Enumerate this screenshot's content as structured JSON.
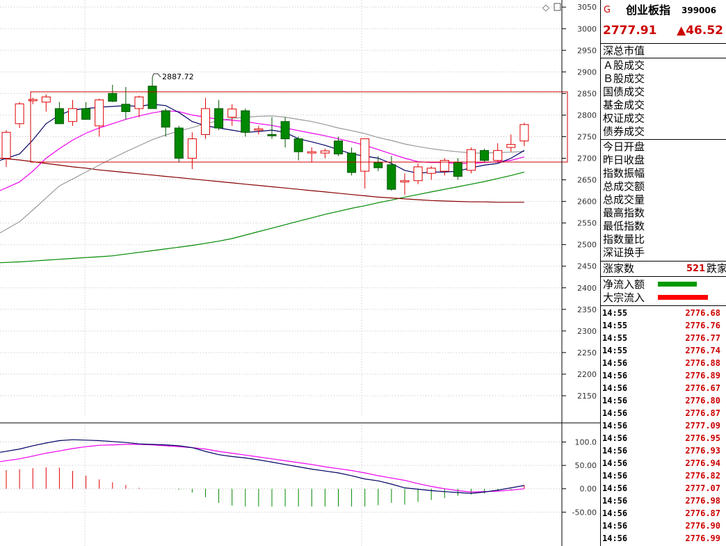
{
  "header": {
    "marker": "G",
    "name": "创业板指",
    "code": "399006",
    "price": "2777.91",
    "change": "▲46.52"
  },
  "chart_data": [
    {
      "type": "candlestick",
      "title": "",
      "ylim": [
        2100,
        3060
      ],
      "y_ticks": [
        3050,
        3000,
        2950,
        2900,
        2850,
        2800,
        2750,
        2700,
        2650,
        2600,
        2550,
        2500,
        2450,
        2400,
        2350,
        2300,
        2250,
        2200,
        2150
      ],
      "high_annotation": "2887.72",
      "candles": [
        {
          "o": 2700,
          "h": 2765,
          "l": 2680,
          "c": 2760
        },
        {
          "o": 2780,
          "h": 2830,
          "l": 2770,
          "c": 2826
        },
        {
          "o": 2833,
          "h": 2840,
          "l": 2825,
          "c": 2836
        },
        {
          "o": 2830,
          "h": 2848,
          "l": 2808,
          "c": 2842
        },
        {
          "o": 2815,
          "h": 2830,
          "l": 2780,
          "c": 2780
        },
        {
          "o": 2785,
          "h": 2835,
          "l": 2775,
          "c": 2815
        },
        {
          "o": 2815,
          "h": 2830,
          "l": 2790,
          "c": 2790
        },
        {
          "o": 2775,
          "h": 2838,
          "l": 2750,
          "c": 2835
        },
        {
          "o": 2850,
          "h": 2870,
          "l": 2830,
          "c": 2832
        },
        {
          "o": 2825,
          "h": 2865,
          "l": 2790,
          "c": 2808
        },
        {
          "o": 2815,
          "h": 2845,
          "l": 2795,
          "c": 2842
        },
        {
          "o": 2867,
          "h": 2887.72,
          "l": 2815,
          "c": 2815
        },
        {
          "o": 2810,
          "h": 2815,
          "l": 2750,
          "c": 2772
        },
        {
          "o": 2770,
          "h": 2775,
          "l": 2690,
          "c": 2700
        },
        {
          "o": 2700,
          "h": 2760,
          "l": 2675,
          "c": 2745
        },
        {
          "o": 2755,
          "h": 2840,
          "l": 2745,
          "c": 2815
        },
        {
          "o": 2815,
          "h": 2835,
          "l": 2765,
          "c": 2770
        },
        {
          "o": 2795,
          "h": 2825,
          "l": 2775,
          "c": 2814
        },
        {
          "o": 2810,
          "h": 2815,
          "l": 2750,
          "c": 2760
        },
        {
          "o": 2765,
          "h": 2775,
          "l": 2755,
          "c": 2768
        },
        {
          "o": 2755,
          "h": 2795,
          "l": 2745,
          "c": 2752
        },
        {
          "o": 2785,
          "h": 2795,
          "l": 2725,
          "c": 2745
        },
        {
          "o": 2745,
          "h": 2750,
          "l": 2695,
          "c": 2715
        },
        {
          "o": 2712,
          "h": 2725,
          "l": 2690,
          "c": 2715
        },
        {
          "o": 2712,
          "h": 2722,
          "l": 2700,
          "c": 2717
        },
        {
          "o": 2740,
          "h": 2750,
          "l": 2705,
          "c": 2710
        },
        {
          "o": 2712,
          "h": 2725,
          "l": 2660,
          "c": 2667
        },
        {
          "o": 2670,
          "h": 2740,
          "l": 2630,
          "c": 2745
        },
        {
          "o": 2690,
          "h": 2705,
          "l": 2670,
          "c": 2678
        },
        {
          "o": 2685,
          "h": 2705,
          "l": 2625,
          "c": 2628
        },
        {
          "o": 2645,
          "h": 2665,
          "l": 2615,
          "c": 2648
        },
        {
          "o": 2648,
          "h": 2688,
          "l": 2640,
          "c": 2680
        },
        {
          "o": 2665,
          "h": 2682,
          "l": 2650,
          "c": 2677
        },
        {
          "o": 2670,
          "h": 2700,
          "l": 2660,
          "c": 2695
        },
        {
          "o": 2690,
          "h": 2700,
          "l": 2650,
          "c": 2658
        },
        {
          "o": 2672,
          "h": 2725,
          "l": 2665,
          "c": 2720
        },
        {
          "o": 2718,
          "h": 2722,
          "l": 2690,
          "c": 2695
        },
        {
          "o": 2695,
          "h": 2735,
          "l": 2690,
          "c": 2718
        },
        {
          "o": 2725,
          "h": 2755,
          "l": 2715,
          "c": 2732
        },
        {
          "o": 2740,
          "h": 2782,
          "l": 2728,
          "c": 2778
        }
      ],
      "ma_short": [
        2695,
        2710,
        2742,
        2780,
        2800,
        2812,
        2815,
        2818,
        2820,
        2822,
        2820,
        2825,
        2822,
        2806,
        2785,
        2775,
        2770,
        2765,
        2760,
        2762,
        2765,
        2760,
        2745,
        2738,
        2730,
        2720,
        2710,
        2705,
        2700,
        2688,
        2672,
        2665,
        2668,
        2668,
        2670,
        2678,
        2684,
        2688,
        2700,
        2718
      ],
      "ma_mid": [
        2625,
        2645,
        2670,
        2700,
        2722,
        2742,
        2758,
        2770,
        2780,
        2790,
        2798,
        2805,
        2810,
        2808,
        2800,
        2795,
        2790,
        2788,
        2785,
        2780,
        2776,
        2770,
        2764,
        2758,
        2752,
        2745,
        2738,
        2730,
        2720,
        2710,
        2700,
        2692,
        2690,
        2690,
        2688,
        2688,
        2690,
        2692,
        2695,
        2703
      ],
      "ma_long": [
        2527,
        2553,
        2580,
        2608,
        2636,
        2652,
        2668,
        2684,
        2700,
        2715,
        2729,
        2743,
        2754,
        2763,
        2771,
        2780,
        2787,
        2792,
        2795,
        2797,
        2798,
        2795,
        2790,
        2785,
        2778,
        2770,
        2764,
        2757,
        2748,
        2741,
        2733,
        2727,
        2722,
        2718,
        2715,
        2712,
        2712,
        2713,
        2714,
        2716
      ],
      "ma_xlong": [
        2458,
        2460,
        2462,
        2464,
        2466,
        2468,
        2470,
        2472,
        2474,
        2478,
        2482,
        2486,
        2490,
        2494,
        2498,
        2503,
        2508,
        2514,
        2522,
        2530,
        2538,
        2546,
        2554,
        2562,
        2570,
        2577,
        2584,
        2590,
        2597,
        2603,
        2610,
        2616,
        2622,
        2628,
        2634,
        2640,
        2646,
        2653,
        2660,
        2668
      ],
      "ma_long2": [
        2700,
        2696,
        2692,
        2688,
        2684,
        2680,
        2677,
        2673,
        2670,
        2667,
        2664,
        2661,
        2658,
        2655,
        2652,
        2649,
        2646,
        2643,
        2640,
        2637,
        2634,
        2631,
        2628,
        2625,
        2622,
        2619,
        2616,
        2613,
        2610,
        2608,
        2606,
        2604,
        2602,
        2601,
        2600,
        2599,
        2599,
        2598,
        2598,
        2598
      ]
    },
    {
      "type": "macd",
      "ylim": [
        -115,
        135
      ],
      "y_ticks": [
        100.0,
        50.0,
        0.0,
        -50.0
      ],
      "y_tick_labels": [
        "100.0",
        "50.00",
        "0.00",
        "-50.00"
      ],
      "dif": [
        78,
        85,
        92,
        98,
        103,
        105,
        104,
        103,
        101,
        99,
        96,
        95,
        94,
        92,
        88,
        80,
        73,
        69,
        66,
        62,
        57,
        52,
        47,
        42,
        38,
        34,
        28,
        21,
        17,
        10,
        2,
        -1,
        -4,
        -6,
        -8,
        -10,
        -7,
        -3,
        2,
        7
      ],
      "dea": [
        58,
        64,
        70,
        76,
        81,
        86,
        90,
        93,
        94,
        95,
        95,
        94,
        92,
        90,
        88,
        85,
        80,
        76,
        72,
        68,
        64,
        60,
        56,
        52,
        47,
        43,
        39,
        34,
        28,
        23,
        18,
        11,
        5,
        0,
        -4,
        -7,
        -6,
        -5,
        -3,
        0
      ],
      "hist": [
        40,
        42,
        44,
        46,
        45,
        38,
        28,
        20,
        14,
        8,
        2,
        0,
        0,
        -2,
        -8,
        -18,
        -30,
        -36,
        -38,
        -38,
        -38,
        -38,
        -38,
        -38,
        -38,
        -38,
        -38,
        -38,
        -35,
        -30,
        -34,
        -28,
        -24,
        -20,
        -15,
        -12,
        -10,
        -5,
        -3,
        8
      ]
    }
  ],
  "panel": {
    "market_value_label": "深总市值",
    "turnover_labels": [
      "Ａ股成交",
      "Ｂ股成交",
      "国债成交",
      "基金成交",
      "权证成交",
      "债券成交"
    ],
    "stat_labels": [
      "今日开盘",
      "昨日收盘",
      "指数振幅",
      "总成交额",
      "总成交量",
      "最高指数",
      "最低指数",
      "指数量比",
      "深证换手"
    ],
    "advance_label": "涨家数",
    "advance_value": "521",
    "decline_label": "跌家",
    "net_inflow_label": "净流入额",
    "net_inflow_color": "#009900",
    "block_inflow_label": "大宗流入",
    "block_inflow_color": "#ff0000"
  },
  "ticks": [
    {
      "time": "14:55",
      "price": "2776.68"
    },
    {
      "time": "14:55",
      "price": "2776.76"
    },
    {
      "time": "14:55",
      "price": "2776.77"
    },
    {
      "time": "14:55",
      "price": "2776.74"
    },
    {
      "time": "14:56",
      "price": "2776.88"
    },
    {
      "time": "14:56",
      "price": "2776.89"
    },
    {
      "time": "14:56",
      "price": "2776.67"
    },
    {
      "time": "14:56",
      "price": "2776.80"
    },
    {
      "time": "14:56",
      "price": "2776.87"
    },
    {
      "time": "14:56",
      "price": "2777.09"
    },
    {
      "time": "14:56",
      "price": "2776.95"
    },
    {
      "time": "14:56",
      "price": "2776.93"
    },
    {
      "time": "14:56",
      "price": "2776.94"
    },
    {
      "time": "14:56",
      "price": "2776.82"
    },
    {
      "time": "14:56",
      "price": "2777.07"
    },
    {
      "time": "14:56",
      "price": "2776.98"
    },
    {
      "time": "14:56",
      "price": "2776.87"
    },
    {
      "time": "14:56",
      "price": "2776.90"
    },
    {
      "time": "14:56",
      "price": "2776.99"
    }
  ],
  "colors": {
    "up": "#e00000",
    "down": "#008800",
    "ma_short": "#000066",
    "ma_mid": "#ee00ee",
    "ma_long": "#999999",
    "ma_xlong": "#008800",
    "ma_long2": "#880000",
    "dif": "#000066",
    "dea": "#ee00ee"
  }
}
